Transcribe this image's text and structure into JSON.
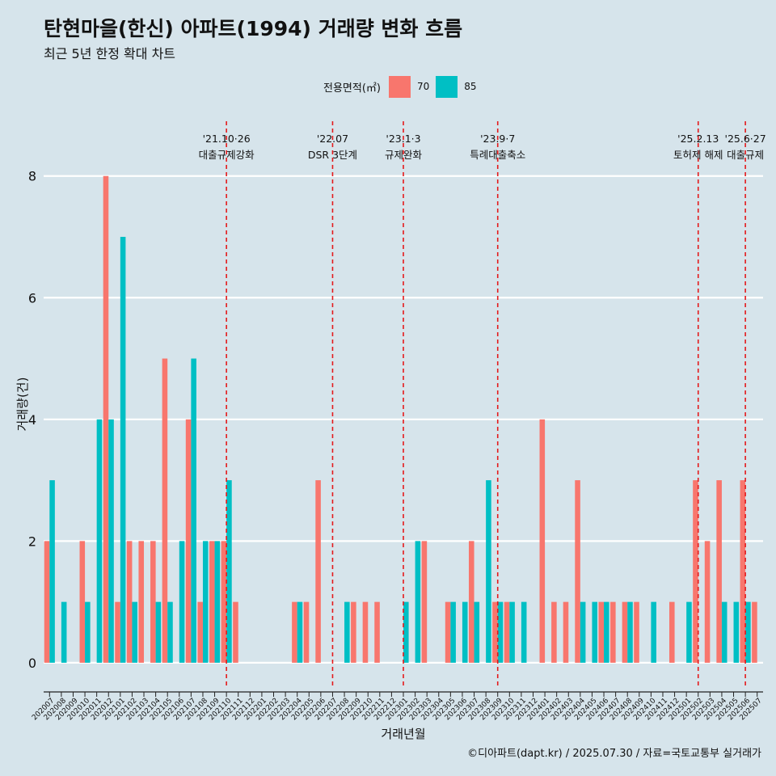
{
  "chart_data": {
    "type": "bar",
    "title": "탄현마을(한신) 아파트(1994) 거래량 변화 흐름",
    "subtitle": "최근 5년 한정 확대 차트",
    "xlabel": "거래년월",
    "ylabel": "거래량(건)",
    "ylim": [
      -0.4,
      8.9
    ],
    "yticks": [
      0,
      2,
      4,
      6,
      8
    ],
    "legend_title": "전용면적(㎡)",
    "categories": [
      "202007",
      "202008",
      "202009",
      "202010",
      "202011",
      "202012",
      "202101",
      "202102",
      "202103",
      "202104",
      "202105",
      "202106",
      "202107",
      "202108",
      "202109",
      "202110",
      "202111",
      "202112",
      "202201",
      "202202",
      "202203",
      "202204",
      "202205",
      "202206",
      "202207",
      "202208",
      "202209",
      "202210",
      "202211",
      "202212",
      "202301",
      "202302",
      "202303",
      "202304",
      "202305",
      "202306",
      "202307",
      "202308",
      "202309",
      "202310",
      "202311",
      "202312",
      "202401",
      "202402",
      "202403",
      "202404",
      "202405",
      "202406",
      "202407",
      "202408",
      "202409",
      "202410",
      "202411",
      "202412",
      "202501",
      "202502",
      "202503",
      "202504",
      "202505",
      "202506",
      "202507"
    ],
    "series": [
      {
        "name": "70",
        "color": "#f8766d",
        "values": [
          2,
          0,
          0,
          2,
          0,
          8,
          1,
          2,
          2,
          2,
          5,
          0,
          4,
          1,
          2,
          2,
          1,
          0,
          0,
          0,
          0,
          1,
          1,
          3,
          0,
          0,
          1,
          1,
          1,
          0,
          0,
          0,
          2,
          0,
          1,
          0,
          2,
          0,
          1,
          1,
          0,
          0,
          4,
          1,
          1,
          3,
          0,
          1,
          1,
          1,
          1,
          0,
          0,
          1,
          0,
          3,
          2,
          3,
          0,
          3,
          1
        ]
      },
      {
        "name": "85",
        "color": "#00bfc4",
        "values": [
          3,
          1,
          0,
          1,
          4,
          4,
          7,
          1,
          0,
          1,
          1,
          2,
          5,
          2,
          2,
          3,
          0,
          0,
          0,
          0,
          0,
          1,
          0,
          0,
          0,
          1,
          0,
          0,
          0,
          0,
          1,
          2,
          0,
          0,
          1,
          1,
          1,
          3,
          1,
          1,
          1,
          0,
          0,
          0,
          0,
          1,
          1,
          1,
          0,
          1,
          0,
          1,
          0,
          0,
          1,
          0,
          0,
          1,
          1,
          1,
          0
        ]
      }
    ],
    "events": [
      {
        "position": 15.5,
        "date": "'21.10·26",
        "label": "대출규제강화"
      },
      {
        "position": 24.5,
        "date": "'22.07",
        "label": "DSR 3단계"
      },
      {
        "position": 30.5,
        "date": "'23.1·3",
        "label": "규제완화"
      },
      {
        "position": 38.5,
        "date": "'23.9·7",
        "label": "특례대출축소"
      },
      {
        "position": 55.5,
        "date": "'25.2.13",
        "label": "토허제 해제"
      },
      {
        "position": 59.5,
        "date": "'25.6·27",
        "label": "대출규제"
      }
    ],
    "caption": "©디아파트(dapt.kr) / 2025.07.30 / 자료=국토교통부 실거래가"
  }
}
